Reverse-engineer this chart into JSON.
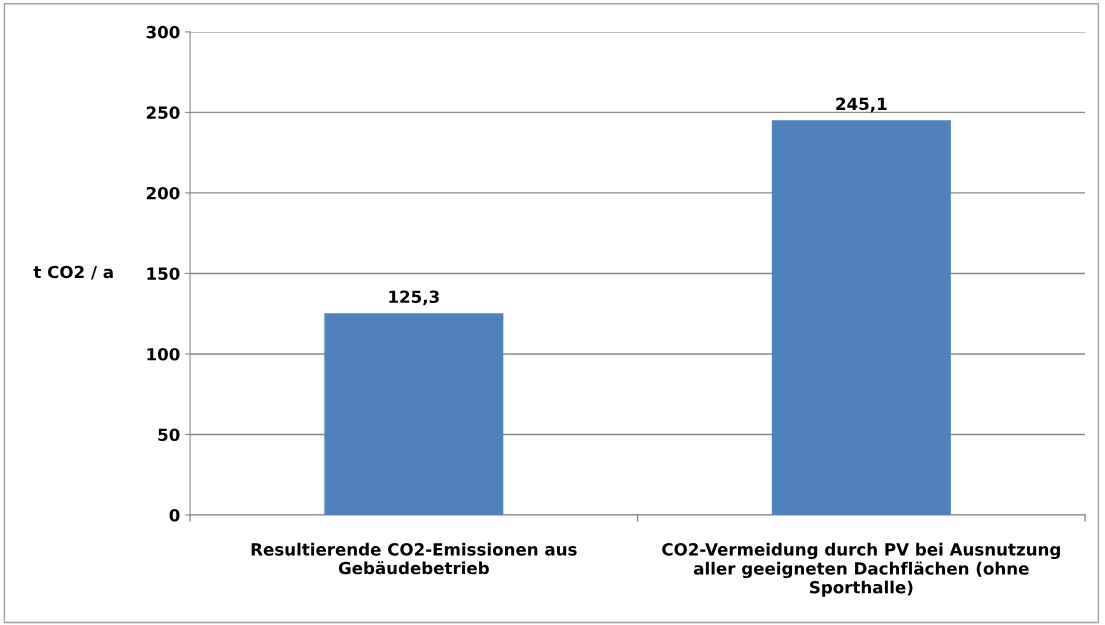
{
  "chart_data": {
    "type": "bar",
    "ylabel": "t CO2 / a",
    "categories": [
      "Resultierende CO2-Emissionen aus\nGebäudebetrieb",
      "CO2-Vermeidung durch PV bei Ausnutzung\naller geeigneten Dachflächen (ohne\nSporthalle)"
    ],
    "values": [
      125.3,
      245.1
    ],
    "value_labels": [
      "125,3",
      "245,1"
    ],
    "color": "#4f81bd",
    "ylim": [
      0,
      300
    ],
    "yticks": [
      0,
      50,
      100,
      150,
      200,
      250,
      300
    ],
    "grid": "y",
    "legend": false
  }
}
